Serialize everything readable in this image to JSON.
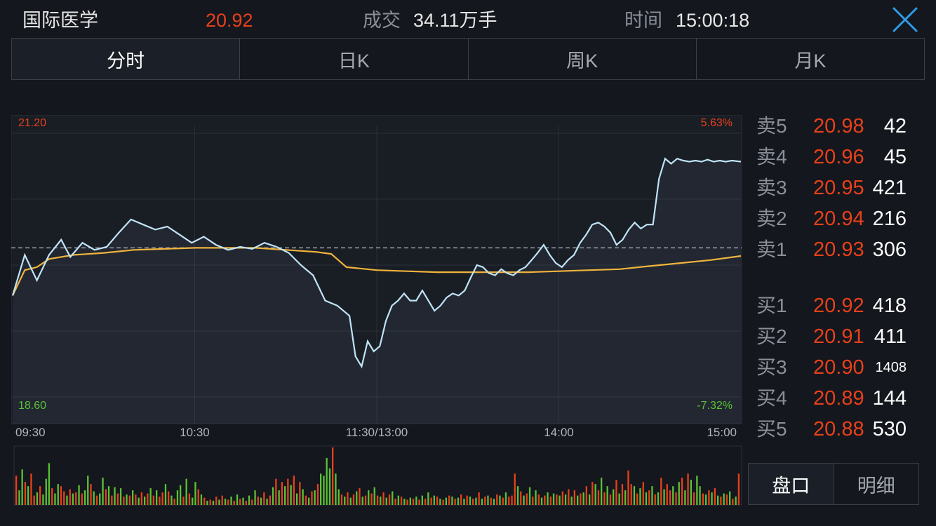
{
  "header": {
    "stock_name": "国际医学",
    "price": "20.92",
    "volume_label": "成交",
    "volume_value": "34.11万手",
    "time_label": "时间",
    "time_value": "15:00:18"
  },
  "tabs": [
    "分时",
    "日K",
    "周K",
    "月K"
  ],
  "chart_data": {
    "type": "line",
    "y_max_label": "21.20",
    "y_min_label": "18.60",
    "pct_max_label": "5.63%",
    "pct_min_label": "-7.32%",
    "x_tick_labels": [
      "09:30",
      "10:30",
      "11:30/13:00",
      "14:00",
      "15:00"
    ],
    "ylim": [
      18.6,
      21.2
    ],
    "reference_price": 20.07,
    "minutes": 240,
    "series": [
      {
        "color": "#bfe3f5",
        "points": [
          [
            0,
            19.6
          ],
          [
            4,
            20.0
          ],
          [
            8,
            19.75
          ],
          [
            12,
            20.0
          ],
          [
            16,
            20.15
          ],
          [
            19,
            19.98
          ],
          [
            23,
            20.12
          ],
          [
            27,
            20.05
          ],
          [
            31,
            20.08
          ],
          [
            35,
            20.22
          ],
          [
            39,
            20.35
          ],
          [
            43,
            20.3
          ],
          [
            47,
            20.25
          ],
          [
            51,
            20.28
          ],
          [
            55,
            20.2
          ],
          [
            59,
            20.12
          ],
          [
            63,
            20.18
          ],
          [
            67,
            20.1
          ],
          [
            71,
            20.05
          ],
          [
            75,
            20.08
          ],
          [
            79,
            20.06
          ],
          [
            83,
            20.12
          ],
          [
            87,
            20.08
          ],
          [
            91,
            20.02
          ],
          [
            95,
            19.9
          ],
          [
            99,
            19.8
          ],
          [
            103,
            19.55
          ],
          [
            107,
            19.5
          ],
          [
            111,
            19.4
          ],
          [
            113,
            19.0
          ],
          [
            115,
            18.9
          ],
          [
            117,
            19.15
          ],
          [
            119,
            19.05
          ],
          [
            121,
            19.1
          ],
          [
            123,
            19.35
          ],
          [
            125,
            19.5
          ],
          [
            127,
            19.55
          ],
          [
            129,
            19.62
          ],
          [
            131,
            19.55
          ],
          [
            133,
            19.55
          ],
          [
            135,
            19.65
          ],
          [
            137,
            19.55
          ],
          [
            139,
            19.45
          ],
          [
            141,
            19.5
          ],
          [
            143,
            19.58
          ],
          [
            145,
            19.62
          ],
          [
            147,
            19.6
          ],
          [
            149,
            19.65
          ],
          [
            151,
            19.78
          ],
          [
            153,
            19.9
          ],
          [
            155,
            19.88
          ],
          [
            157,
            19.82
          ],
          [
            159,
            19.8
          ],
          [
            161,
            19.86
          ],
          [
            163,
            19.82
          ],
          [
            165,
            19.8
          ],
          [
            167,
            19.85
          ],
          [
            169,
            19.88
          ],
          [
            171,
            19.95
          ],
          [
            173,
            20.02
          ],
          [
            175,
            20.1
          ],
          [
            177,
            20.0
          ],
          [
            179,
            19.92
          ],
          [
            181,
            19.88
          ],
          [
            183,
            19.95
          ],
          [
            185,
            20.0
          ],
          [
            187,
            20.12
          ],
          [
            189,
            20.2
          ],
          [
            191,
            20.3
          ],
          [
            193,
            20.32
          ],
          [
            195,
            20.28
          ],
          [
            197,
            20.22
          ],
          [
            199,
            20.1
          ],
          [
            201,
            20.15
          ],
          [
            203,
            20.25
          ],
          [
            205,
            20.32
          ],
          [
            207,
            20.26
          ],
          [
            209,
            20.3
          ],
          [
            211,
            20.3
          ],
          [
            213,
            20.75
          ],
          [
            215,
            20.95
          ],
          [
            217,
            20.9
          ],
          [
            219,
            20.95
          ],
          [
            221,
            20.93
          ],
          [
            223,
            20.92
          ],
          [
            225,
            20.93
          ],
          [
            227,
            20.92
          ],
          [
            229,
            20.94
          ],
          [
            231,
            20.92
          ],
          [
            233,
            20.93
          ],
          [
            235,
            20.92
          ],
          [
            237,
            20.93
          ],
          [
            240,
            20.92
          ]
        ]
      },
      {
        "color": "#f0b43c",
        "points": [
          [
            0,
            19.6
          ],
          [
            4,
            19.85
          ],
          [
            8,
            19.88
          ],
          [
            12,
            19.96
          ],
          [
            16,
            19.98
          ],
          [
            20,
            20.0
          ],
          [
            30,
            20.02
          ],
          [
            40,
            20.05
          ],
          [
            50,
            20.06
          ],
          [
            60,
            20.07
          ],
          [
            70,
            20.07
          ],
          [
            80,
            20.07
          ],
          [
            90,
            20.05
          ],
          [
            100,
            20.03
          ],
          [
            105,
            20.01
          ],
          [
            110,
            19.88
          ],
          [
            120,
            19.85
          ],
          [
            130,
            19.84
          ],
          [
            140,
            19.83
          ],
          [
            150,
            19.83
          ],
          [
            160,
            19.83
          ],
          [
            170,
            19.83
          ],
          [
            180,
            19.84
          ],
          [
            190,
            19.85
          ],
          [
            200,
            19.86
          ],
          [
            210,
            19.89
          ],
          [
            220,
            19.92
          ],
          [
            230,
            19.95
          ],
          [
            240,
            19.99
          ]
        ]
      }
    ],
    "volume_bars": [
      28,
      14,
      34,
      22,
      18,
      30,
      9,
      12,
      18,
      10,
      25,
      40,
      16,
      11,
      20,
      18,
      13,
      9,
      15,
      11,
      12,
      19,
      11,
      14,
      28,
      20,
      13,
      9,
      11,
      26,
      15,
      18,
      9,
      17,
      11,
      16,
      8,
      10,
      9,
      14,
      10,
      7,
      12,
      8,
      11,
      16,
      9,
      14,
      8,
      12,
      20,
      13,
      9,
      6,
      14,
      19,
      8,
      25,
      11,
      7,
      22,
      15,
      10,
      7,
      4,
      5,
      4,
      8,
      5,
      9,
      6,
      5,
      8,
      4,
      10,
      6,
      7,
      4,
      9,
      5,
      14,
      8,
      7,
      12,
      6,
      9,
      17,
      25,
      14,
      22,
      18,
      25,
      19,
      28,
      11,
      22,
      15,
      9,
      7,
      13,
      14,
      20,
      30,
      28,
      45,
      35,
      55,
      30,
      15,
      10,
      8,
      12,
      7,
      10,
      13,
      16,
      8,
      9,
      14,
      11,
      17,
      9,
      8,
      12,
      7,
      10,
      13,
      6,
      9,
      8,
      6,
      5,
      7,
      6,
      8,
      5,
      9,
      6,
      12,
      7,
      9,
      8,
      6,
      5,
      7,
      9,
      8,
      6,
      7,
      10,
      6,
      9,
      8,
      6,
      7,
      12,
      6,
      8,
      9,
      7,
      6,
      10,
      9,
      7,
      12,
      8,
      9,
      30,
      18,
      13,
      9,
      11,
      17,
      8,
      14,
      10,
      7,
      9,
      12,
      8,
      11,
      10,
      9,
      13,
      10,
      15,
      8,
      14,
      9,
      11,
      12,
      18,
      10,
      22,
      20,
      14,
      26,
      12,
      18,
      10,
      15,
      24,
      11,
      20,
      14,
      33,
      20,
      18,
      11,
      16,
      22,
      12,
      14,
      18,
      10,
      12,
      26,
      15,
      20,
      14,
      18,
      12,
      22,
      26,
      14,
      30,
      24,
      12,
      28,
      18,
      11,
      10,
      14,
      12,
      16,
      9,
      8,
      11,
      10,
      13,
      6,
      8,
      30
    ],
    "volume_colors": [
      "r",
      "g",
      "g",
      "r",
      "g",
      "r",
      "r",
      "g",
      "r",
      "g",
      "g",
      "g",
      "r",
      "g",
      "g",
      "r",
      "r",
      "g",
      "r",
      "g",
      "r",
      "g",
      "r",
      "g",
      "g",
      "r",
      "g",
      "r",
      "g",
      "g",
      "r",
      "g",
      "r",
      "g",
      "r",
      "g",
      "r",
      "g",
      "r",
      "g",
      "r",
      "g",
      "r",
      "g",
      "r",
      "g",
      "r",
      "g",
      "r",
      "r",
      "g",
      "r",
      "g",
      "r",
      "g",
      "g",
      "r",
      "g",
      "r",
      "g",
      "g",
      "r",
      "g",
      "r",
      "g",
      "r",
      "g",
      "r",
      "g",
      "r",
      "g",
      "r",
      "g",
      "r",
      "g",
      "r",
      "g",
      "r",
      "g",
      "r",
      "g",
      "r",
      "g",
      "r",
      "g",
      "r",
      "g",
      "r",
      "g",
      "r",
      "g",
      "r",
      "g",
      "r",
      "g",
      "r",
      "g",
      "r",
      "g",
      "r",
      "g",
      "r",
      "g",
      "g",
      "g",
      "g",
      "r",
      "g",
      "g",
      "r",
      "g",
      "r",
      "g",
      "r",
      "g",
      "r",
      "g",
      "r",
      "g",
      "r",
      "g",
      "r",
      "g",
      "r",
      "g",
      "r",
      "g",
      "r",
      "g",
      "r",
      "g",
      "r",
      "g",
      "r",
      "g",
      "r",
      "g",
      "r",
      "g",
      "r",
      "g",
      "r",
      "g",
      "r",
      "g",
      "r",
      "g",
      "r",
      "g",
      "r",
      "g",
      "r",
      "g",
      "r",
      "g",
      "r",
      "g",
      "r",
      "g",
      "r",
      "g",
      "r",
      "g",
      "r",
      "g",
      "r",
      "r",
      "r",
      "g",
      "r",
      "g",
      "r",
      "g",
      "r",
      "g",
      "r",
      "g",
      "r",
      "g",
      "r",
      "g",
      "r",
      "g",
      "r",
      "g",
      "r",
      "g",
      "r",
      "g",
      "r",
      "g",
      "r",
      "g",
      "r",
      "g",
      "r",
      "g",
      "r",
      "g",
      "r",
      "g",
      "r",
      "g",
      "r",
      "g",
      "r",
      "r",
      "g",
      "r",
      "g",
      "r",
      "g",
      "r",
      "g",
      "r",
      "g",
      "r",
      "g",
      "r",
      "r",
      "g",
      "r",
      "g",
      "r",
      "g",
      "r",
      "g",
      "r",
      "g",
      "g",
      "r",
      "g",
      "r",
      "g",
      "r",
      "g",
      "r",
      "g",
      "r",
      "g",
      "r",
      "g",
      "r",
      "g",
      "r",
      "g",
      "r"
    ]
  },
  "order_book": {
    "asks": [
      {
        "label": "卖5",
        "price": "20.98",
        "volume": "42"
      },
      {
        "label": "卖4",
        "price": "20.96",
        "volume": "45"
      },
      {
        "label": "卖3",
        "price": "20.95",
        "volume": "421"
      },
      {
        "label": "卖2",
        "price": "20.94",
        "volume": "216"
      },
      {
        "label": "卖1",
        "price": "20.93",
        "volume": "306"
      }
    ],
    "bids": [
      {
        "label": "买1",
        "price": "20.92",
        "volume": "418"
      },
      {
        "label": "买2",
        "price": "20.91",
        "volume": "411"
      },
      {
        "label": "买3",
        "price": "20.90",
        "volume": "1408"
      },
      {
        "label": "买4",
        "price": "20.89",
        "volume": "144"
      },
      {
        "label": "买5",
        "price": "20.88",
        "volume": "530"
      }
    ]
  },
  "bottom_tabs": [
    "盘口",
    "明细"
  ],
  "colors": {
    "up": "#e8401a",
    "down": "#5bc236",
    "avg_line": "#f0b43c",
    "price_line": "#bfe3f5"
  }
}
